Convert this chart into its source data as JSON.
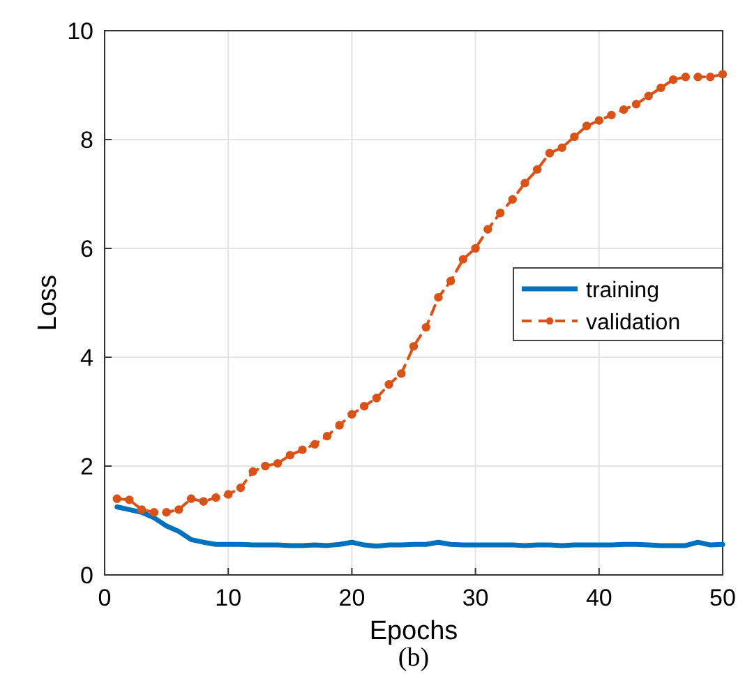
{
  "chart_data": {
    "type": "line",
    "xlabel": "Epochs",
    "ylabel": "Loss",
    "x": [
      1,
      2,
      3,
      4,
      5,
      6,
      7,
      8,
      9,
      10,
      11,
      12,
      13,
      14,
      15,
      16,
      17,
      18,
      19,
      20,
      21,
      22,
      23,
      24,
      25,
      26,
      27,
      28,
      29,
      30,
      31,
      32,
      33,
      34,
      35,
      36,
      37,
      38,
      39,
      40,
      41,
      42,
      43,
      44,
      45,
      46,
      47,
      48,
      49,
      50
    ],
    "series": [
      {
        "name": "training",
        "color": "#0072bd",
        "line_style": "solid",
        "marker": "none",
        "values": [
          1.25,
          1.2,
          1.15,
          1.05,
          0.9,
          0.8,
          0.65,
          0.6,
          0.56,
          0.56,
          0.56,
          0.55,
          0.55,
          0.55,
          0.54,
          0.54,
          0.55,
          0.54,
          0.56,
          0.6,
          0.55,
          0.53,
          0.55,
          0.55,
          0.56,
          0.56,
          0.6,
          0.56,
          0.55,
          0.55,
          0.55,
          0.55,
          0.55,
          0.54,
          0.55,
          0.55,
          0.54,
          0.55,
          0.55,
          0.55,
          0.55,
          0.56,
          0.56,
          0.55,
          0.54,
          0.54,
          0.54,
          0.6,
          0.55,
          0.56
        ]
      },
      {
        "name": "validation",
        "color": "#d95319",
        "line_style": "dashed",
        "marker": "circle",
        "values": [
          1.4,
          1.38,
          1.2,
          1.15,
          1.15,
          1.2,
          1.4,
          1.35,
          1.42,
          1.48,
          1.6,
          1.9,
          2.0,
          2.05,
          2.2,
          2.3,
          2.4,
          2.55,
          2.75,
          2.95,
          3.1,
          3.25,
          3.5,
          3.7,
          4.2,
          4.55,
          5.1,
          5.4,
          5.8,
          6.0,
          6.35,
          6.65,
          6.9,
          7.2,
          7.45,
          7.75,
          7.85,
          8.05,
          8.25,
          8.35,
          8.45,
          8.55,
          8.65,
          8.8,
          8.95,
          9.1,
          9.15,
          9.15,
          9.15,
          9.2
        ]
      }
    ],
    "xlim": [
      0,
      50
    ],
    "xticks": [
      0,
      10,
      20,
      30,
      40,
      50
    ],
    "ylim": [
      0,
      10
    ],
    "yticks": [
      0,
      2,
      4,
      6,
      8,
      10
    ],
    "grid": true,
    "legend": "right",
    "annotations": [
      "(b)"
    ]
  }
}
